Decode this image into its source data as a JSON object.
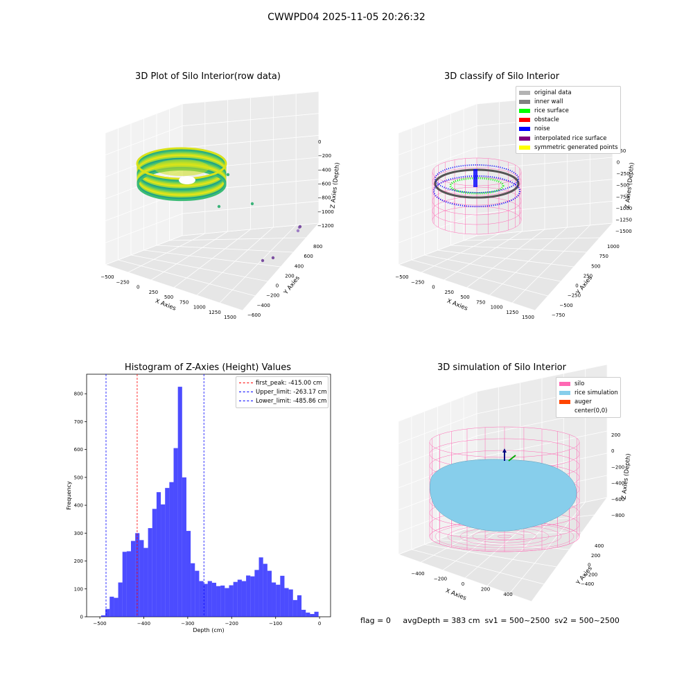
{
  "suptitle": "CWWPD04 2025-11-05 20:26:32",
  "footer": "flag = 0     avgDepth = 383 cm  sv1 = 500~2500  sv2 = 500~2500",
  "panels": {
    "raw": {
      "title": "3D Plot of Silo Interior(row data)",
      "xlabel": "X Axies",
      "ylabel": "Y Axies",
      "zlabel": "Z Axies (Depth)",
      "xticks": [
        "−500",
        "−250",
        "0",
        "250",
        "500",
        "750",
        "1000",
        "1250",
        "1500"
      ],
      "yticks": [
        "−600",
        "−400",
        "−200",
        "0",
        "200",
        "400",
        "600",
        "800"
      ],
      "zticks": [
        "0",
        "−200",
        "−400",
        "−600",
        "−800",
        "−1000",
        "−1200"
      ]
    },
    "classify": {
      "title": "3D classify of Silo Interior",
      "xlabel": "X Axies",
      "ylabel": "Y Axies",
      "zlabel": "Z Axies (Depth)",
      "xticks": [
        "−500",
        "−250",
        "0",
        "250",
        "500",
        "750",
        "1000",
        "1250",
        "1500"
      ],
      "yticks": [
        "−750",
        "−500",
        "−250",
        "0",
        "250",
        "500",
        "750",
        "1000"
      ],
      "zticks": [
        "250",
        "0",
        "−250",
        "−500",
        "−750",
        "−1000",
        "−1250",
        "−1500"
      ],
      "zticks_partial": [
        "100",
        "50"
      ],
      "legend": [
        {
          "label": "original data",
          "color": "#b3b3b3"
        },
        {
          "label": "inner wall",
          "color": "#808080"
        },
        {
          "label": "rice surface",
          "color": "#00ff00"
        },
        {
          "label": "obstacle",
          "color": "#ff0000"
        },
        {
          "label": "noise",
          "color": "#0000ff"
        },
        {
          "label": "interpolated rice surface",
          "color": "#800080"
        },
        {
          "label": "symmetric generated points",
          "color": "#ffff00"
        }
      ]
    },
    "simulation": {
      "title": "3D simulation of Silo Interior",
      "xlabel": "X Axies",
      "ylabel": "Y Axies",
      "zlabel": "Z Axies (Depth)",
      "xticks": [
        "−400",
        "−200",
        "0",
        "200",
        "400"
      ],
      "yticks": [
        "−400",
        "−200",
        "0",
        "200",
        "400"
      ],
      "zticks": [
        "200",
        "0",
        "−200",
        "−400",
        "−600",
        "−800"
      ],
      "legend": [
        {
          "label": "silo",
          "color": "#ff69b4"
        },
        {
          "label": "rice simulation",
          "color": "#87ceeb"
        },
        {
          "label": "auger",
          "color": "#ff4500"
        },
        {
          "label": "center(0,0)",
          "color": "#ffffff"
        }
      ]
    }
  },
  "chart_data": {
    "type": "bar",
    "title": "Histogram of Z-Axies (Height) Values",
    "xlabel": "Depth (cm)",
    "ylabel": "Frequency",
    "xlim": [
      -530,
      25
    ],
    "ylim": [
      0,
      870
    ],
    "xticks": [
      -500,
      -400,
      -300,
      -200,
      -100,
      0
    ],
    "yticks": [
      0,
      100,
      200,
      300,
      400,
      500,
      600,
      700,
      800
    ],
    "bin_width": 9.7,
    "bin_start": -497,
    "values": [
      5,
      28,
      72,
      68,
      123,
      233,
      235,
      272,
      300,
      275,
      247,
      318,
      387,
      447,
      403,
      462,
      483,
      605,
      825,
      500,
      308,
      192,
      165,
      128,
      118,
      128,
      122,
      110,
      112,
      103,
      113,
      125,
      133,
      128,
      148,
      145,
      168,
      213,
      190,
      165,
      123,
      115,
      147,
      103,
      98,
      60,
      77,
      25,
      15,
      10,
      18
    ],
    "bar_color": "#0000ff",
    "legend_position": "upper right",
    "vlines": [
      {
        "label": "first_peak: -415.00 cm",
        "x": -415.0,
        "color": "#ff0000"
      },
      {
        "label": "Upper_limit: -263.17 cm",
        "x": -263.17,
        "color": "#0000ff"
      },
      {
        "label": "Lower_limit: -485.86 cm",
        "x": -485.86,
        "color": "#0000ff"
      }
    ]
  }
}
